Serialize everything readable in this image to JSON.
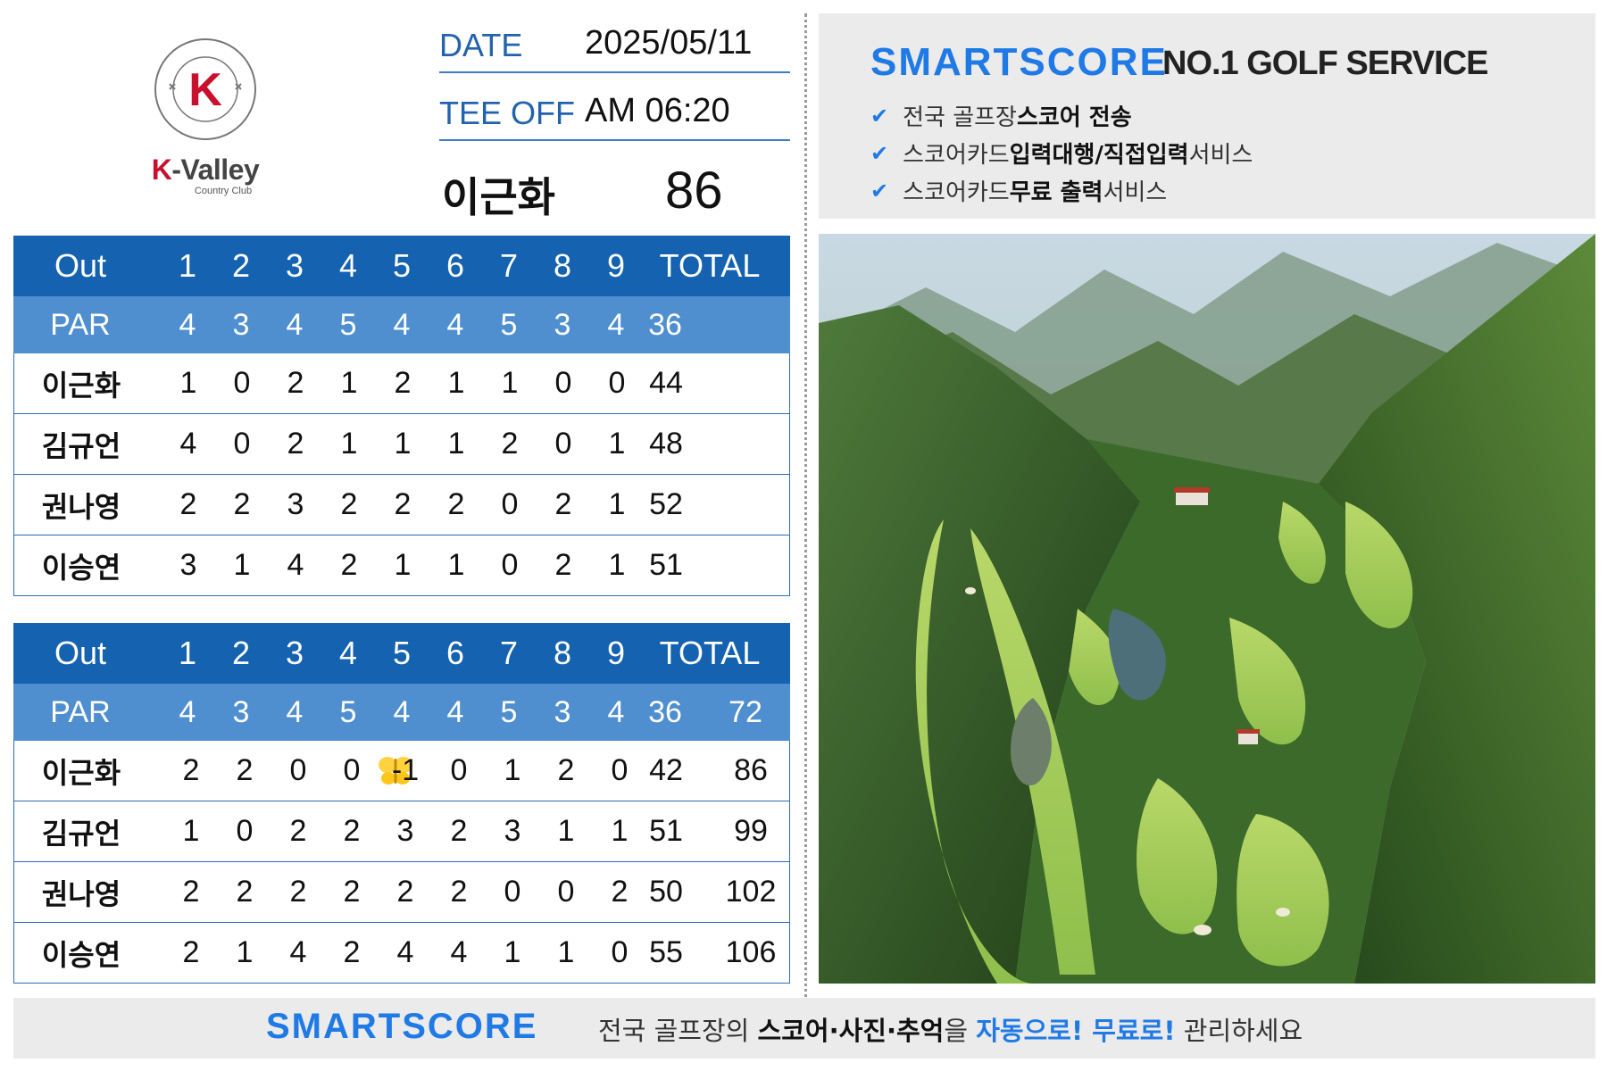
{
  "logo": {
    "letter": "K",
    "ring_text": "K-VALLEY COUNTRY CLUB",
    "name_k": "K",
    "name_rest": "-Valley",
    "subtitle": "Country Club"
  },
  "header": {
    "date_label": "DATE",
    "date_value": "2025/05/11",
    "teeoff_label": "TEE OFF",
    "teeoff_value": "AM 06:20",
    "player_name": "이근화",
    "player_score": "86"
  },
  "front_nine": {
    "header": [
      "Out",
      "1",
      "2",
      "3",
      "4",
      "5",
      "6",
      "7",
      "8",
      "9",
      "TOTAL"
    ],
    "par": {
      "label": "PAR",
      "holes": [
        "4",
        "3",
        "4",
        "5",
        "4",
        "4",
        "5",
        "3",
        "4"
      ],
      "total": "36"
    },
    "players": [
      {
        "name": "이근화",
        "scores": [
          "1",
          "0",
          "2",
          "1",
          "2",
          "1",
          "1",
          "0",
          "0"
        ],
        "total": "44"
      },
      {
        "name": "김규언",
        "scores": [
          "4",
          "0",
          "2",
          "1",
          "1",
          "1",
          "2",
          "0",
          "1"
        ],
        "total": "48"
      },
      {
        "name": "권나영",
        "scores": [
          "2",
          "2",
          "3",
          "2",
          "2",
          "2",
          "0",
          "2",
          "1"
        ],
        "total": "52"
      },
      {
        "name": "이승연",
        "scores": [
          "3",
          "1",
          "4",
          "2",
          "1",
          "1",
          "0",
          "2",
          "1"
        ],
        "total": "51"
      }
    ]
  },
  "back_nine": {
    "header": [
      "Out",
      "1",
      "2",
      "3",
      "4",
      "5",
      "6",
      "7",
      "8",
      "9",
      "TOTAL"
    ],
    "par": {
      "label": "PAR",
      "holes": [
        "4",
        "3",
        "4",
        "5",
        "4",
        "4",
        "5",
        "3",
        "4"
      ],
      "total": "36",
      "grand_total": "72"
    },
    "players": [
      {
        "name": "이근화",
        "scores": [
          "2",
          "2",
          "0",
          "0",
          "-1",
          "0",
          "1",
          "2",
          "0"
        ],
        "total": "42",
        "grand_total": "86"
      },
      {
        "name": "김규언",
        "scores": [
          "1",
          "0",
          "2",
          "2",
          "3",
          "2",
          "3",
          "1",
          "1"
        ],
        "total": "51",
        "grand_total": "99"
      },
      {
        "name": "권나영",
        "scores": [
          "2",
          "2",
          "2",
          "2",
          "2",
          "2",
          "0",
          "0",
          "2"
        ],
        "total": "50",
        "grand_total": "102"
      },
      {
        "name": "이승연",
        "scores": [
          "2",
          "1",
          "4",
          "2",
          "4",
          "4",
          "1",
          "1",
          "0"
        ],
        "total": "55",
        "grand_total": "106"
      }
    ]
  },
  "ad": {
    "brand": "SMARTSCORE",
    "tagline": "NO.1 GOLF SERVICE",
    "bullets": [
      {
        "pre": "전국 골프장 ",
        "bold": "스코어 전송",
        "post": ""
      },
      {
        "pre": "스코어카드 ",
        "bold": "입력대행/직접입력",
        "post": " 서비스"
      },
      {
        "pre": "스코어카드 ",
        "bold": "무료 출력",
        "post": " 서비스"
      }
    ]
  },
  "footer": {
    "brand": "SMARTSCORE",
    "text_pre": "전국 골프장의 ",
    "text_bold": "스코어·사진·추억",
    "text_mid": "을 ",
    "text_blue": "자동으로! 무료로!",
    "text_post": " 관리하세요"
  },
  "colors": {
    "header_blue": "#1462b0",
    "par_blue": "#4f8fd0",
    "brand_blue": "#1f7ae6",
    "logo_red": "#c8102e"
  }
}
